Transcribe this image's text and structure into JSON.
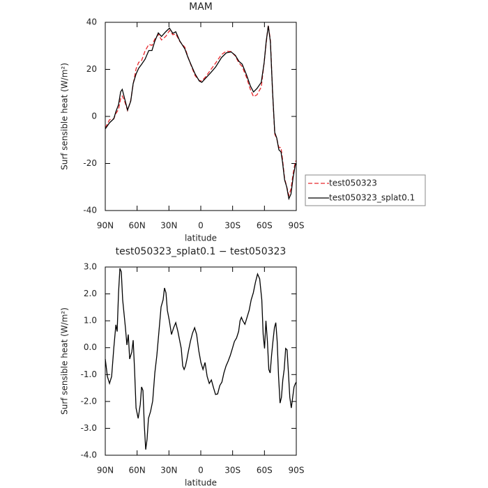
{
  "chart_data": [
    {
      "type": "line",
      "title": "MAM",
      "xlabel": "latitude",
      "ylabel": "Surf sensible heat (W/m²)",
      "xlim": [
        90,
        -90
      ],
      "ylim": [
        -40,
        40
      ],
      "xticks": [
        {
          "value": 90,
          "label": "90N"
        },
        {
          "value": 60,
          "label": "60N"
        },
        {
          "value": 30,
          "label": "30N"
        },
        0,
        {
          "value": -30,
          "label": "30S"
        },
        {
          "value": -60,
          "label": "60S"
        },
        {
          "value": -90,
          "label": "90S"
        }
      ],
      "yticks": [
        -40,
        -20,
        0,
        20,
        40
      ],
      "legend": "right",
      "x": [
        90,
        86,
        82,
        80,
        77.5,
        75.5,
        74,
        72,
        69,
        66,
        63.7,
        61,
        58.5,
        56,
        52.5,
        49,
        46,
        43.3,
        40,
        37,
        33,
        29.5,
        26.3,
        23.6,
        19.7,
        15,
        12,
        8.5,
        5.3,
        1.3,
        -1,
        -4.7,
        -9,
        -14,
        -19.5,
        -24,
        -28.6,
        -32.5,
        -36,
        -39,
        -43,
        -46.7,
        -49.7,
        -53,
        -57,
        -59.7,
        -61.6,
        -63.6,
        -65.6,
        -67.6,
        -69.7,
        -71.6,
        -73.6,
        -75.6,
        -77,
        -79,
        -81,
        -83,
        -85,
        -87,
        -89,
        -90
      ],
      "series": [
        {
          "name": "test050323",
          "color": "#e8262b",
          "linestyle": "dashed",
          "values": [
            -4.9,
            -1.4,
            -1,
            1.2,
            3,
            7.6,
            8.7,
            6.8,
            2.5,
            6.8,
            13.7,
            20.2,
            23,
            23.5,
            27.8,
            30.6,
            30.2,
            32.9,
            34.9,
            32.5,
            34,
            36.5,
            34.7,
            35.1,
            31.8,
            29.4,
            25.2,
            20.9,
            17.3,
            15.2,
            15.1,
            16.9,
            19.6,
            22.7,
            26.3,
            27.7,
            27.6,
            25.7,
            22.7,
            21.2,
            16.7,
            11.5,
            8.4,
            9.2,
            12.5,
            22.8,
            30.9,
            38.8,
            32.4,
            10.9,
            -7.5,
            -9.5,
            -13.2,
            -13.2,
            -18.1,
            -26.4,
            -29.9,
            -33.6,
            -30.8,
            -24.4,
            -19.4,
            -18.7
          ]
        },
        {
          "name": "test050323_splat0.1",
          "color": "#000000",
          "linestyle": "solid",
          "values": [
            -5.3,
            -2.7,
            -1,
            2,
            5,
            10.5,
            11.5,
            8,
            2.7,
            6.5,
            14,
            18,
            20.5,
            22,
            24.3,
            28,
            28,
            32,
            35.5,
            34,
            36,
            37.5,
            35.3,
            36,
            32,
            28.7,
            25,
            21.3,
            18,
            15,
            14.5,
            16.3,
            18.4,
            21,
            25,
            27,
            27.4,
            26,
            23.4,
            22.2,
            17.8,
            13,
            10.4,
            11.9,
            14.5,
            22.8,
            31.7,
            38.5,
            31.7,
            11,
            -6.8,
            -9.2,
            -14.2,
            -15.1,
            -19.3,
            -27,
            -30,
            -35,
            -33,
            -26,
            -20.7,
            -20
          ]
        }
      ]
    },
    {
      "type": "line",
      "title": "test050323_splat0.1 − test050323",
      "xlabel": "latitude",
      "ylabel": "Surf sensible heat (W/m²)",
      "xlim": [
        90,
        -90
      ],
      "ylim": [
        -4,
        3
      ],
      "xticks": [
        {
          "value": 90,
          "label": "90N"
        },
        {
          "value": 60,
          "label": "60N"
        },
        {
          "value": 30,
          "label": "30N"
        },
        0,
        {
          "value": -30,
          "label": "30S"
        },
        {
          "value": -60,
          "label": "60S"
        },
        {
          "value": -90,
          "label": "90S"
        }
      ],
      "yticks": [
        {
          "value": -4,
          "label": "-4.0"
        },
        {
          "value": -3,
          "label": "-3.0"
        },
        {
          "value": -2,
          "label": "-2.0"
        },
        {
          "value": -1,
          "label": "-1.0"
        },
        {
          "value": 0,
          "label": "0.0"
        },
        {
          "value": 1,
          "label": "1.0"
        },
        {
          "value": 2,
          "label": "2.0"
        },
        {
          "value": 3,
          "label": "3.0"
        }
      ],
      "color": "#000000",
      "x": [
        90,
        88,
        86,
        84,
        82,
        80,
        78.8,
        77.5,
        76.2,
        74.9,
        73.6,
        72.3,
        71,
        69.6,
        68.3,
        67,
        65,
        63.7,
        62.4,
        61,
        59,
        57,
        55.8,
        54.5,
        53.2,
        51.9,
        50.6,
        49.3,
        47.3,
        45.3,
        43.3,
        41.4,
        39.4,
        37.4,
        35.5,
        34.2,
        32.8,
        31.5,
        29.6,
        27.6,
        25.6,
        23.6,
        21.6,
        19.7,
        18.4,
        17,
        15.7,
        14.4,
        13,
        11.8,
        9.8,
        7.8,
        5.8,
        3.9,
        1.9,
        -0.1,
        -2.1,
        -4,
        -6,
        -8,
        -10,
        -12,
        -13.9,
        -15.9,
        -17.9,
        -19.9,
        -21.8,
        -23.8,
        -25.8,
        -27.8,
        -29.8,
        -31.7,
        -33.7,
        -35.7,
        -37,
        -38.3,
        -39.6,
        -41.6,
        -43.6,
        -45.6,
        -47.5,
        -49.5,
        -51.5,
        -53.5,
        -55.5,
        -57.5,
        -58.8,
        -60.1,
        -61.4,
        -62.8,
        -64.1,
        -65.4,
        -66.7,
        -68,
        -69.4,
        -70.7,
        -72,
        -73.3,
        -74.7,
        -76,
        -77.3,
        -78.6,
        -80,
        -81.3,
        -82.6,
        -83.9,
        -85.3,
        -86.6,
        -87.9,
        -89.2,
        -90
      ],
      "values": [
        -0.42,
        -1.07,
        -1.33,
        -1.07,
        -0.03,
        0.85,
        0.6,
        2.04,
        2.95,
        2.82,
        1.78,
        1.26,
        0.74,
        0.1,
        0.49,
        -0.42,
        -0.16,
        0.28,
        -0.81,
        -2.24,
        -2.63,
        -2.11,
        -1.46,
        -1.59,
        -2.89,
        -3.79,
        -3.4,
        -2.63,
        -2.37,
        -1.98,
        -0.94,
        -0.29,
        0.61,
        1.52,
        1.78,
        2.22,
        2.04,
        1.39,
        1.0,
        0.49,
        0.74,
        0.93,
        0.61,
        0.23,
        -0.03,
        -0.68,
        -0.81,
        -0.68,
        -0.42,
        -0.16,
        0.23,
        0.54,
        0.74,
        0.49,
        -0.11,
        -0.55,
        -0.81,
        -0.55,
        -1.07,
        -1.33,
        -1.2,
        -1.49,
        -1.74,
        -1.72,
        -1.41,
        -1.28,
        -0.94,
        -0.68,
        -0.5,
        -0.29,
        -0.03,
        0.23,
        0.36,
        0.61,
        1.0,
        1.13,
        1.0,
        0.87,
        1.13,
        1.39,
        1.78,
        2.04,
        2.43,
        2.74,
        2.56,
        1.78,
        0.49,
        -0.03,
        1.0,
        0.23,
        -0.81,
        -0.94,
        -0.29,
        0.23,
        0.74,
        0.93,
        0.23,
        -1.07,
        -2.06,
        -1.85,
        -1.2,
        -0.81,
        -0.03,
        -0.08,
        -0.94,
        -1.85,
        -2.24,
        -1.85,
        -1.46,
        -1.33,
        -1.28
      ]
    }
  ]
}
